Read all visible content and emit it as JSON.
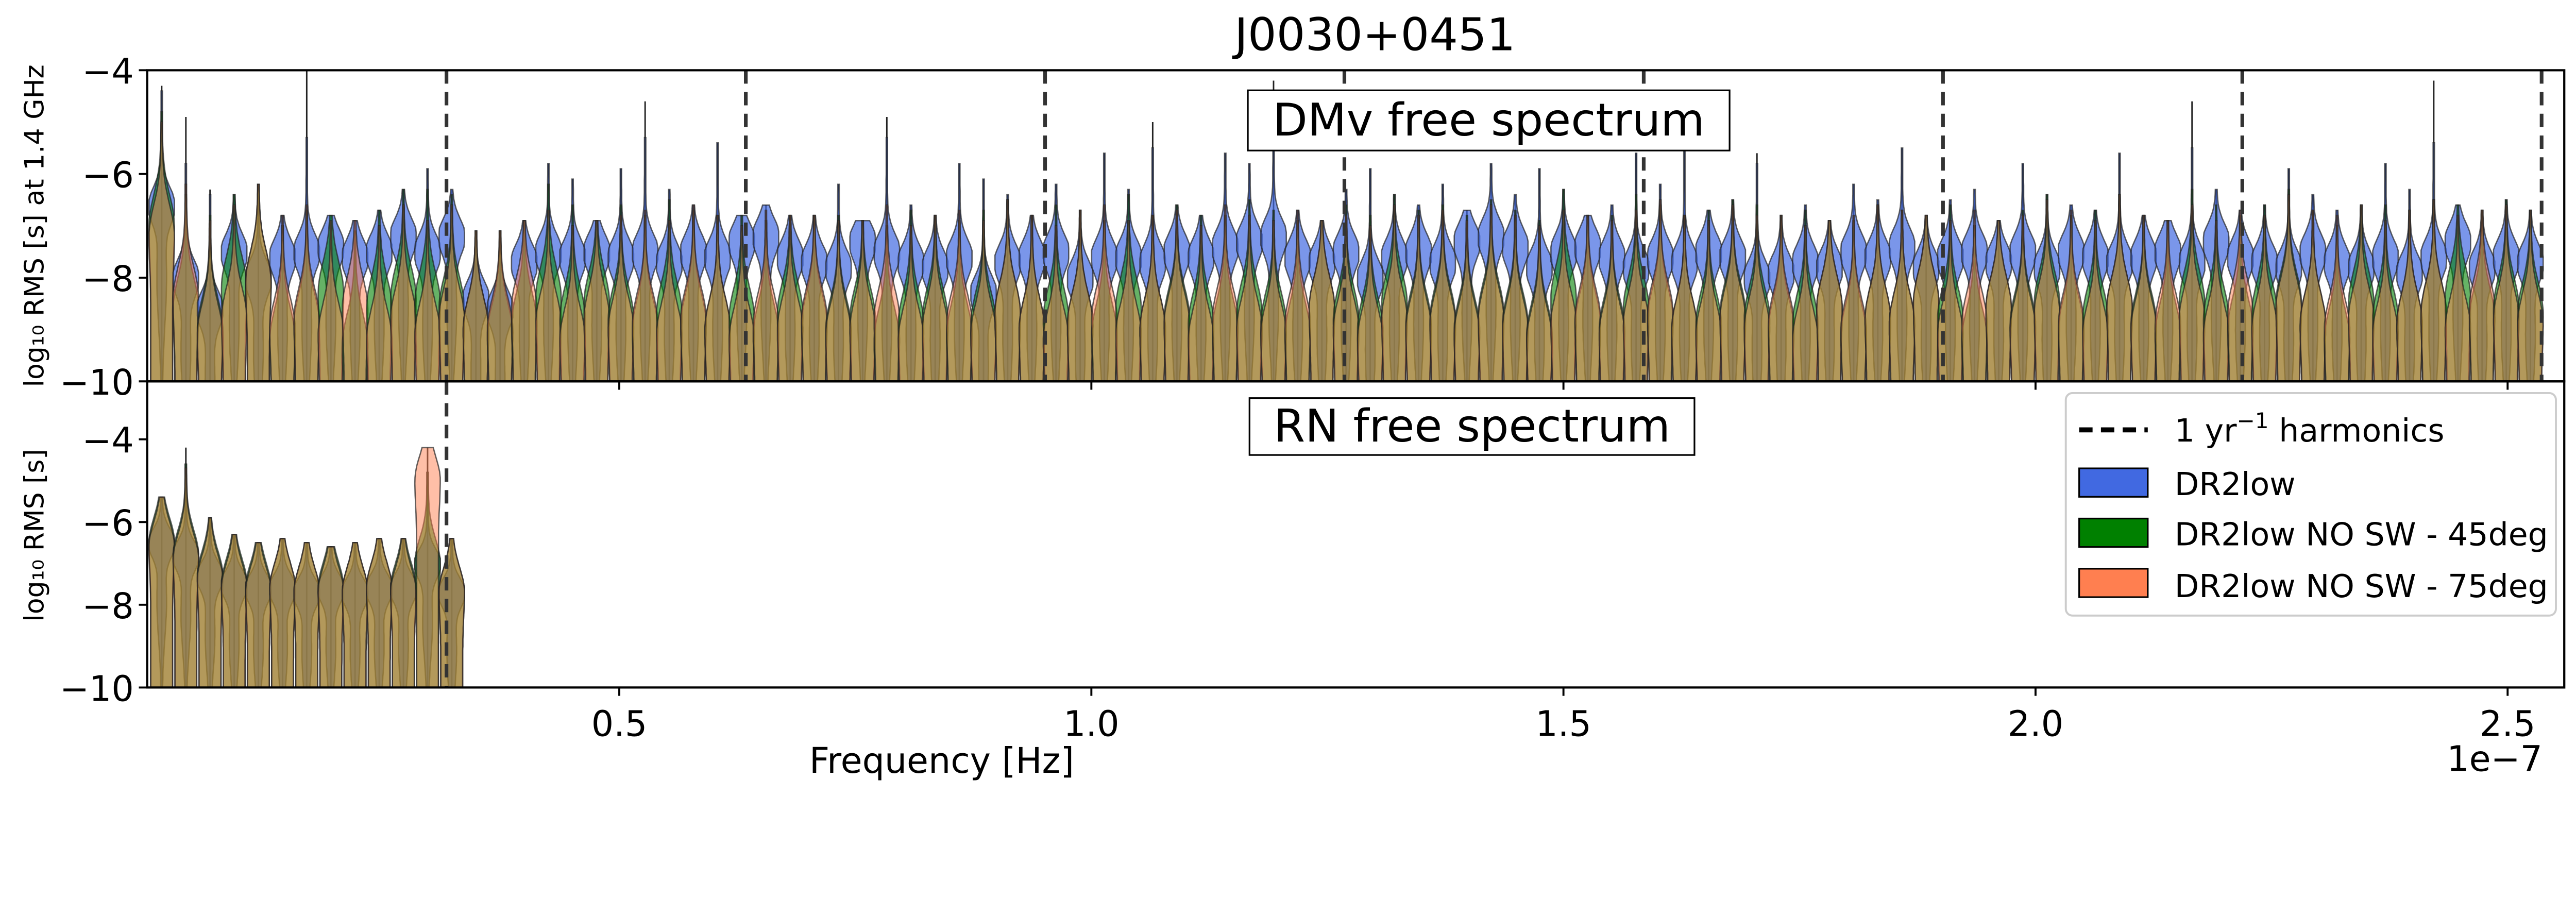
{
  "title": "J0030+0451",
  "chart_data": [
    {
      "type": "violin",
      "panel": "top",
      "annotation": "DMv free spectrum",
      "ylabel": "log₁₀ RMS [s] at 1.4 GHz",
      "ylim": [
        -10,
        -4
      ],
      "yticks": [
        "−4",
        "−6",
        "−8",
        "−10"
      ],
      "ytick_values": [
        -4,
        -6,
        -8,
        -10
      ],
      "frequency_step_1e-7": 0.0256,
      "n_frequencies": 99,
      "whisker_top": [
        -4.3,
        -4.9,
        -6.3,
        -6.4,
        -6.2,
        -6.8,
        -4.0,
        -6.8,
        -6.9,
        -6.7,
        -6.3,
        -5.9,
        -6.3,
        -7.1,
        -7.1,
        -6.9,
        -5.8,
        -6.1,
        -6.9,
        -5.9,
        -4.6,
        -6.3,
        -6.6,
        -5.4,
        -6.8,
        -6.6,
        -6.8,
        -6.8,
        -6.2,
        -6.9,
        -4.9,
        -6.6,
        -6.8,
        -5.8,
        -6.1,
        -6.4,
        -6.8,
        -6.2,
        -6.7,
        -5.6,
        -6.3,
        -5.0,
        -6.6,
        -6.8,
        -5.6,
        -5.8,
        -4.2,
        -6.7,
        -6.9,
        -6.3,
        -5.9,
        -6.4,
        -6.6,
        -6.2,
        -6.7,
        -5.8,
        -6.4,
        -5.9,
        -6.3,
        -6.8,
        -6.6,
        -5.6,
        -6.2,
        -5.3,
        -6.7,
        -6.5,
        -5.6,
        -6.8,
        -6.6,
        -6.9,
        -6.2,
        -6.5,
        -5.5,
        -6.8,
        -6.5,
        -6.3,
        -6.9,
        -5.8,
        -6.4,
        -6.6,
        -6.7,
        -5.6,
        -6.8,
        -6.9,
        -4.6,
        -6.3,
        -6.7,
        -6.6,
        -5.9,
        -6.4,
        -6.7,
        -6.6,
        -5.8,
        -6.3,
        -4.2,
        -6.6,
        -6.7,
        -6.5,
        -6.7
      ],
      "series": [
        {
          "name": "DR2low",
          "color": "#4169e1",
          "mode": [
            -6.6,
            -8.0,
            -8.6,
            -7.5,
            -8.0,
            -7.6,
            -7.5,
            -7.4,
            -7.6,
            -7.5,
            -7.2,
            -7.5,
            -7.2,
            -8.4,
            -8.6,
            -7.7,
            -7.5,
            -7.6,
            -7.5,
            -7.6,
            -7.5,
            -7.7,
            -7.5,
            -7.6,
            -7.3,
            -7.2,
            -7.6,
            -7.7,
            -7.8,
            -7.3,
            -7.5,
            -7.7,
            -7.8,
            -7.6,
            -8.3,
            -7.7,
            -7.6,
            -7.5,
            -8.0,
            -7.6,
            -7.6,
            -7.7,
            -7.5,
            -7.6,
            -7.4,
            -7.3,
            -7.2,
            -7.6,
            -7.7,
            -7.5,
            -8.0,
            -7.6,
            -7.5,
            -7.7,
            -7.3,
            -7.2,
            -7.4,
            -7.8,
            -7.5,
            -7.4,
            -7.6,
            -7.8,
            -7.6,
            -7.7,
            -7.5,
            -7.6,
            -8.0,
            -7.9,
            -7.7,
            -7.8,
            -7.5,
            -7.6,
            -7.4,
            -7.8,
            -7.6,
            -7.5,
            -7.7,
            -7.5,
            -7.8,
            -7.5,
            -7.6,
            -7.7,
            -7.6,
            -7.5,
            -7.7,
            -7.3,
            -7.6,
            -7.7,
            -7.8,
            -7.5,
            -7.7,
            -7.8,
            -7.6,
            -7.9,
            -7.6,
            -7.3,
            -7.8,
            -7.6,
            -7.7
          ]
        },
        {
          "name": "DR2low NO SW - 45deg",
          "color": "#008000",
          "mode": [
            -7.0,
            -8.6,
            -9.0,
            -8.2,
            -8.1,
            -9.2,
            -8.9,
            -8.3,
            -9.3,
            -8.6,
            -8.4,
            -8.5,
            -8.6,
            -9.0,
            -9.1,
            -8.9,
            -8.4,
            -8.8,
            -8.5,
            -8.8,
            -9.0,
            -8.7,
            -8.9,
            -9.0,
            -8.8,
            -9.1,
            -8.7,
            -8.9,
            -9.0,
            -8.8,
            -9.2,
            -8.9,
            -8.8,
            -9.1,
            -8.9,
            -8.7,
            -9.0,
            -8.8,
            -8.9,
            -9.1,
            -8.6,
            -9.0,
            -8.8,
            -8.9,
            -9.0,
            -8.7,
            -8.9,
            -9.1,
            -8.6,
            -8.8,
            -9.0,
            -8.5,
            -8.9,
            -8.8,
            -9.0,
            -8.7,
            -8.9,
            -9.1,
            -8.4,
            -8.9,
            -9.0,
            -8.6,
            -8.8,
            -9.0,
            -8.9,
            -8.7,
            -8.8,
            -9.0,
            -8.9,
            -8.6,
            -9.1,
            -8.8,
            -8.9,
            -8.5,
            -8.8,
            -9.2,
            -8.6,
            -8.9,
            -8.5,
            -9.0,
            -8.8,
            -8.6,
            -8.9,
            -9.1,
            -8.5,
            -8.8,
            -9.0,
            -8.7,
            -8.5,
            -8.9,
            -9.2,
            -8.5,
            -8.8,
            -8.9,
            -8.7,
            -8.4,
            -8.8,
            -8.6,
            -8.7
          ]
        },
        {
          "name": "DR2low NO SW - 75deg",
          "color": "#ff7f50",
          "mode": [
            -7.2,
            -8.4,
            -9.1,
            -8.8,
            -8.1,
            -9.0,
            -8.8,
            -9.1,
            -8.6,
            -9.2,
            -8.8,
            -9.1,
            -8.8,
            -9.0,
            -9.0,
            -8.6,
            -8.9,
            -9.2,
            -8.8,
            -9.0,
            -8.9,
            -9.1,
            -8.8,
            -9.0,
            -9.2,
            -8.9,
            -9.0,
            -8.8,
            -9.1,
            -9.0,
            -8.8,
            -9.2,
            -9.0,
            -8.9,
            -9.1,
            -8.7,
            -9.0,
            -9.2,
            -8.9,
            -8.8,
            -9.1,
            -9.0,
            -8.9,
            -9.2,
            -8.8,
            -9.0,
            -9.1,
            -8.9,
            -8.6,
            -9.0,
            -9.2,
            -8.8,
            -9.0,
            -8.9,
            -9.1,
            -8.8,
            -9.0,
            -9.2,
            -8.9,
            -8.8,
            -9.1,
            -8.9,
            -8.7,
            -9.0,
            -9.1,
            -8.8,
            -9.0,
            -8.9,
            -9.2,
            -8.6,
            -9.0,
            -8.8,
            -8.9,
            -8.5,
            -9.1,
            -8.9,
            -8.6,
            -9.0,
            -8.7,
            -8.9,
            -9.1,
            -8.6,
            -9.0,
            -8.9,
            -8.8,
            -9.1,
            -8.7,
            -9.0,
            -8.6,
            -8.9,
            -9.0,
            -8.8,
            -9.1,
            -8.9,
            -8.7,
            -9.0,
            -8.6,
            -8.8,
            -8.9
          ]
        }
      ]
    },
    {
      "type": "violin",
      "panel": "bottom",
      "annotation": "RN free spectrum",
      "ylabel": "log₁₀ RMS [s]",
      "ylim": [
        -10,
        -2.6
      ],
      "yticks": [
        "−4",
        "−6",
        "−8",
        "−10"
      ],
      "ytick_values": [
        -4,
        -6,
        -8,
        -10
      ],
      "frequency_step_1e-7": 0.0256,
      "n_frequencies": 13,
      "whisker_top": [
        -5.4,
        -4.2,
        -5.9,
        -6.3,
        -6.5,
        -6.4,
        -6.5,
        -6.6,
        -6.5,
        -6.4,
        -6.4,
        -4.2,
        -6.4
      ],
      "series": [
        {
          "name": "DR2low",
          "color": "#4169e1",
          "mode": [
            -6.5,
            -6.8,
            -7.3,
            -7.5,
            -7.6,
            -7.6,
            -7.7,
            -7.6,
            -7.7,
            -7.6,
            -7.6,
            -7.0,
            -7.7
          ]
        },
        {
          "name": "DR2low NO SW - 45deg",
          "color": "#008000",
          "mode": [
            -6.5,
            -6.8,
            -7.3,
            -7.5,
            -7.6,
            -7.6,
            -7.7,
            -7.6,
            -7.7,
            -7.6,
            -7.6,
            -7.0,
            -7.7
          ]
        },
        {
          "name": "DR2low NO SW - 75deg",
          "color": "#ff7f50",
          "mode": [
            -6.6,
            -6.9,
            -7.4,
            -7.6,
            -7.7,
            -7.6,
            -7.7,
            -7.7,
            -7.7,
            -7.6,
            -7.7,
            -5.0,
            -7.7
          ]
        }
      ]
    }
  ],
  "xaxis": {
    "label": "Frequency [Hz]",
    "xlim_1e-7": [
      0,
      2.56
    ],
    "ticks": [
      "0.5",
      "1.0",
      "1.5",
      "2.0",
      "2.5"
    ],
    "tick_values": [
      0.5,
      1.0,
      1.5,
      2.0,
      2.5
    ],
    "offset": "1e−7"
  },
  "harmonics": {
    "values_1e-7": [
      0.317,
      0.634,
      0.951,
      1.268,
      1.585,
      1.902,
      2.219,
      2.536
    ],
    "style": "dashed",
    "color": "#333333"
  },
  "legend": {
    "placement": "right (bottom panel)",
    "harmonics_pre": "1 yr",
    "harmonics_sup": "−1",
    "harmonics_post": " harmonics",
    "items": [
      {
        "label": "DR2low",
        "color": "#4169e1"
      },
      {
        "label": "DR2low NO SW - 45deg",
        "color": "#008000"
      },
      {
        "label": "DR2low NO SW - 75deg",
        "color": "#ff7f50"
      }
    ]
  }
}
